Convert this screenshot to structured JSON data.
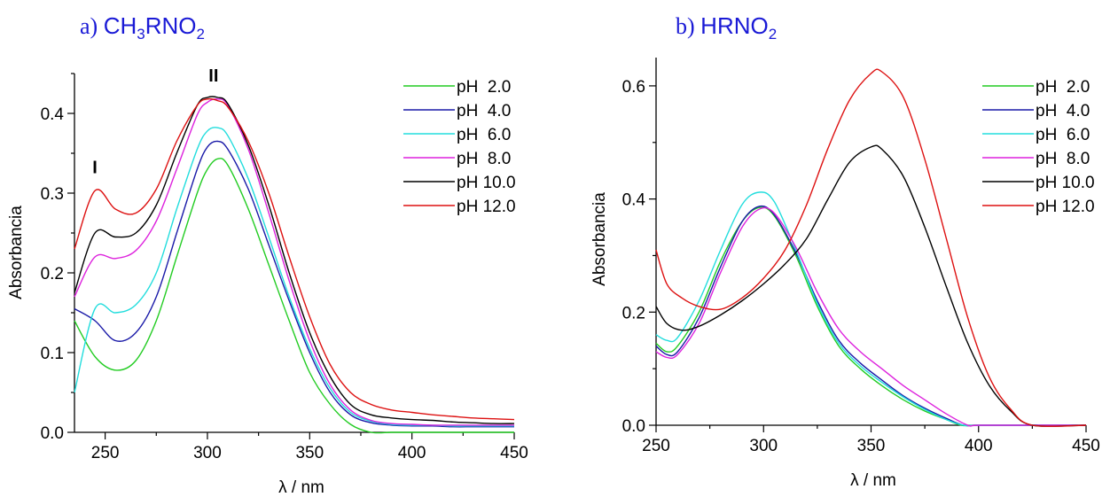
{
  "chart_data": [
    {
      "type": "line",
      "title_prefix": "a) ",
      "title_parts": [
        "CH",
        "3",
        "RNO",
        "2"
      ],
      "xlabel": "λ / nm",
      "ylabel": "Absorbancia",
      "xlim": [
        235,
        450
      ],
      "ylim": [
        0,
        0.45
      ],
      "xticks": [
        250,
        300,
        350,
        400,
        450
      ],
      "yticks": [
        0.0,
        0.1,
        0.2,
        0.3,
        0.4
      ],
      "ytick_labels": [
        "0.0",
        "0.1",
        "0.2",
        "0.3",
        "0.4"
      ],
      "legend_position": "top-right",
      "annotations": [
        {
          "text": "I",
          "x": 245,
          "y": 0.325
        },
        {
          "text": "II",
          "x": 303,
          "y": 0.44
        }
      ],
      "series": [
        {
          "name": "pH  2.0",
          "color": "#22cc22",
          "x": [
            235,
            245,
            255,
            265,
            275,
            285,
            295,
            300,
            305,
            310,
            320,
            330,
            340,
            350,
            360,
            370,
            380,
            390,
            400,
            410,
            420,
            430,
            440,
            450
          ],
          "y": [
            0.14,
            0.095,
            0.078,
            0.09,
            0.14,
            0.22,
            0.3,
            0.33,
            0.343,
            0.335,
            0.28,
            0.21,
            0.14,
            0.075,
            0.035,
            0.01,
            0.0,
            0.0,
            0.0,
            0.0,
            0.0,
            0.0,
            0.0,
            0.0
          ]
        },
        {
          "name": "pH  4.0",
          "color": "#1a1aa8",
          "x": [
            235,
            245,
            255,
            265,
            275,
            285,
            295,
            300,
            305,
            310,
            320,
            330,
            340,
            350,
            360,
            370,
            380,
            390,
            400,
            410,
            420,
            430,
            440,
            450
          ],
          "y": [
            0.155,
            0.14,
            0.115,
            0.125,
            0.17,
            0.25,
            0.33,
            0.358,
            0.365,
            0.355,
            0.305,
            0.235,
            0.165,
            0.1,
            0.05,
            0.022,
            0.012,
            0.009,
            0.008,
            0.008,
            0.007,
            0.007,
            0.007,
            0.007
          ]
        },
        {
          "name": "pH  6.0",
          "color": "#22dddd",
          "x": [
            235,
            245,
            255,
            265,
            275,
            285,
            295,
            300,
            305,
            310,
            320,
            330,
            340,
            350,
            360,
            370,
            380,
            390,
            400,
            410,
            420,
            430,
            440,
            450
          ],
          "y": [
            0.05,
            0.155,
            0.15,
            0.16,
            0.2,
            0.28,
            0.355,
            0.378,
            0.382,
            0.372,
            0.318,
            0.245,
            0.17,
            0.105,
            0.055,
            0.025,
            0.014,
            0.01,
            0.009,
            0.009,
            0.008,
            0.008,
            0.008,
            0.008
          ]
        },
        {
          "name": "pH  8.0",
          "color": "#dd22dd",
          "x": [
            235,
            245,
            255,
            265,
            275,
            285,
            295,
            300,
            305,
            310,
            320,
            330,
            340,
            350,
            360,
            370,
            380,
            390,
            400,
            410,
            420,
            430,
            440,
            450
          ],
          "y": [
            0.17,
            0.22,
            0.218,
            0.228,
            0.265,
            0.33,
            0.398,
            0.414,
            0.418,
            0.41,
            0.355,
            0.275,
            0.19,
            0.115,
            0.06,
            0.028,
            0.015,
            0.011,
            0.01,
            0.009,
            0.009,
            0.009,
            0.009,
            0.009
          ]
        },
        {
          "name": "pH 10.0",
          "color": "#000000",
          "x": [
            235,
            245,
            255,
            265,
            275,
            285,
            295,
            300,
            305,
            310,
            320,
            330,
            340,
            350,
            360,
            370,
            380,
            390,
            400,
            410,
            420,
            430,
            440,
            450
          ],
          "y": [
            0.175,
            0.25,
            0.245,
            0.25,
            0.285,
            0.35,
            0.41,
            0.42,
            0.42,
            0.412,
            0.36,
            0.285,
            0.2,
            0.125,
            0.07,
            0.035,
            0.022,
            0.018,
            0.016,
            0.015,
            0.013,
            0.012,
            0.011,
            0.011
          ]
        },
        {
          "name": "pH 12.0",
          "color": "#dd1111",
          "x": [
            235,
            245,
            255,
            265,
            275,
            285,
            295,
            300,
            305,
            310,
            320,
            330,
            340,
            350,
            360,
            370,
            380,
            390,
            400,
            410,
            420,
            430,
            440,
            450
          ],
          "y": [
            0.23,
            0.303,
            0.28,
            0.275,
            0.305,
            0.365,
            0.41,
            0.418,
            0.416,
            0.408,
            0.365,
            0.3,
            0.22,
            0.145,
            0.085,
            0.05,
            0.035,
            0.028,
            0.025,
            0.022,
            0.02,
            0.018,
            0.017,
            0.016
          ]
        }
      ]
    },
    {
      "type": "line",
      "title_prefix": "b) ",
      "title_parts": [
        "HRNO",
        "2"
      ],
      "xlabel": "λ / nm",
      "ylabel": "Absorbancia",
      "xlim": [
        250,
        450
      ],
      "ylim": [
        0,
        0.65
      ],
      "xticks": [
        250,
        300,
        350,
        400,
        450
      ],
      "yticks": [
        0.0,
        0.2,
        0.4,
        0.6
      ],
      "ytick_labels": [
        "0.0",
        "0.2",
        "0.4",
        "0.6"
      ],
      "legend_position": "top-right",
      "series": [
        {
          "name": "pH  2.0",
          "color": "#22cc22",
          "x": [
            250,
            255,
            260,
            270,
            280,
            290,
            298,
            305,
            315,
            325,
            335,
            345,
            355,
            365,
            375,
            385,
            392,
            400,
            425,
            450
          ],
          "y": [
            0.145,
            0.13,
            0.14,
            0.2,
            0.29,
            0.36,
            0.385,
            0.37,
            0.3,
            0.21,
            0.14,
            0.1,
            0.07,
            0.045,
            0.025,
            0.01,
            0.0,
            0.0,
            0.0,
            0.0
          ]
        },
        {
          "name": "pH  4.0",
          "color": "#1a1aa8",
          "x": [
            250,
            255,
            260,
            270,
            280,
            290,
            298,
            305,
            315,
            325,
            335,
            345,
            355,
            365,
            375,
            385,
            393,
            400,
            425,
            450
          ],
          "y": [
            0.14,
            0.125,
            0.13,
            0.19,
            0.28,
            0.36,
            0.387,
            0.372,
            0.305,
            0.22,
            0.15,
            0.11,
            0.08,
            0.052,
            0.03,
            0.012,
            0.0,
            0.0,
            0.0,
            0.0
          ]
        },
        {
          "name": "pH  6.0",
          "color": "#22dddd",
          "x": [
            250,
            255,
            260,
            270,
            280,
            290,
            298,
            305,
            315,
            325,
            335,
            345,
            355,
            365,
            375,
            385,
            393,
            400,
            425,
            450
          ],
          "y": [
            0.16,
            0.15,
            0.155,
            0.22,
            0.31,
            0.39,
            0.412,
            0.395,
            0.31,
            0.215,
            0.145,
            0.105,
            0.076,
            0.05,
            0.028,
            0.01,
            0.0,
            0.0,
            0.0,
            0.0
          ]
        },
        {
          "name": "pH  8.0",
          "color": "#dd22dd",
          "x": [
            250,
            255,
            260,
            270,
            280,
            290,
            298,
            305,
            315,
            325,
            335,
            345,
            355,
            365,
            375,
            385,
            395,
            400,
            425,
            450
          ],
          "y": [
            0.13,
            0.12,
            0.125,
            0.18,
            0.27,
            0.35,
            0.382,
            0.375,
            0.315,
            0.235,
            0.17,
            0.13,
            0.1,
            0.07,
            0.045,
            0.02,
            0.0,
            0.0,
            0.0,
            0.0
          ]
        },
        {
          "name": "pH 10.0",
          "color": "#000000",
          "x": [
            250,
            255,
            262,
            270,
            280,
            290,
            300,
            310,
            320,
            330,
            340,
            350,
            355,
            365,
            375,
            385,
            395,
            405,
            415,
            425,
            450
          ],
          "y": [
            0.21,
            0.18,
            0.168,
            0.175,
            0.195,
            0.22,
            0.25,
            0.285,
            0.33,
            0.4,
            0.465,
            0.492,
            0.488,
            0.44,
            0.35,
            0.245,
            0.145,
            0.07,
            0.025,
            0.0,
            0.0
          ]
        },
        {
          "name": "pH 12.0",
          "color": "#dd1111",
          "x": [
            250,
            255,
            262,
            270,
            280,
            290,
            300,
            310,
            320,
            330,
            340,
            350,
            355,
            365,
            375,
            385,
            395,
            405,
            415,
            425,
            450
          ],
          "y": [
            0.31,
            0.25,
            0.225,
            0.21,
            0.205,
            0.225,
            0.26,
            0.31,
            0.39,
            0.49,
            0.575,
            0.622,
            0.625,
            0.58,
            0.47,
            0.33,
            0.19,
            0.085,
            0.028,
            0.0,
            0.0
          ]
        }
      ]
    }
  ]
}
